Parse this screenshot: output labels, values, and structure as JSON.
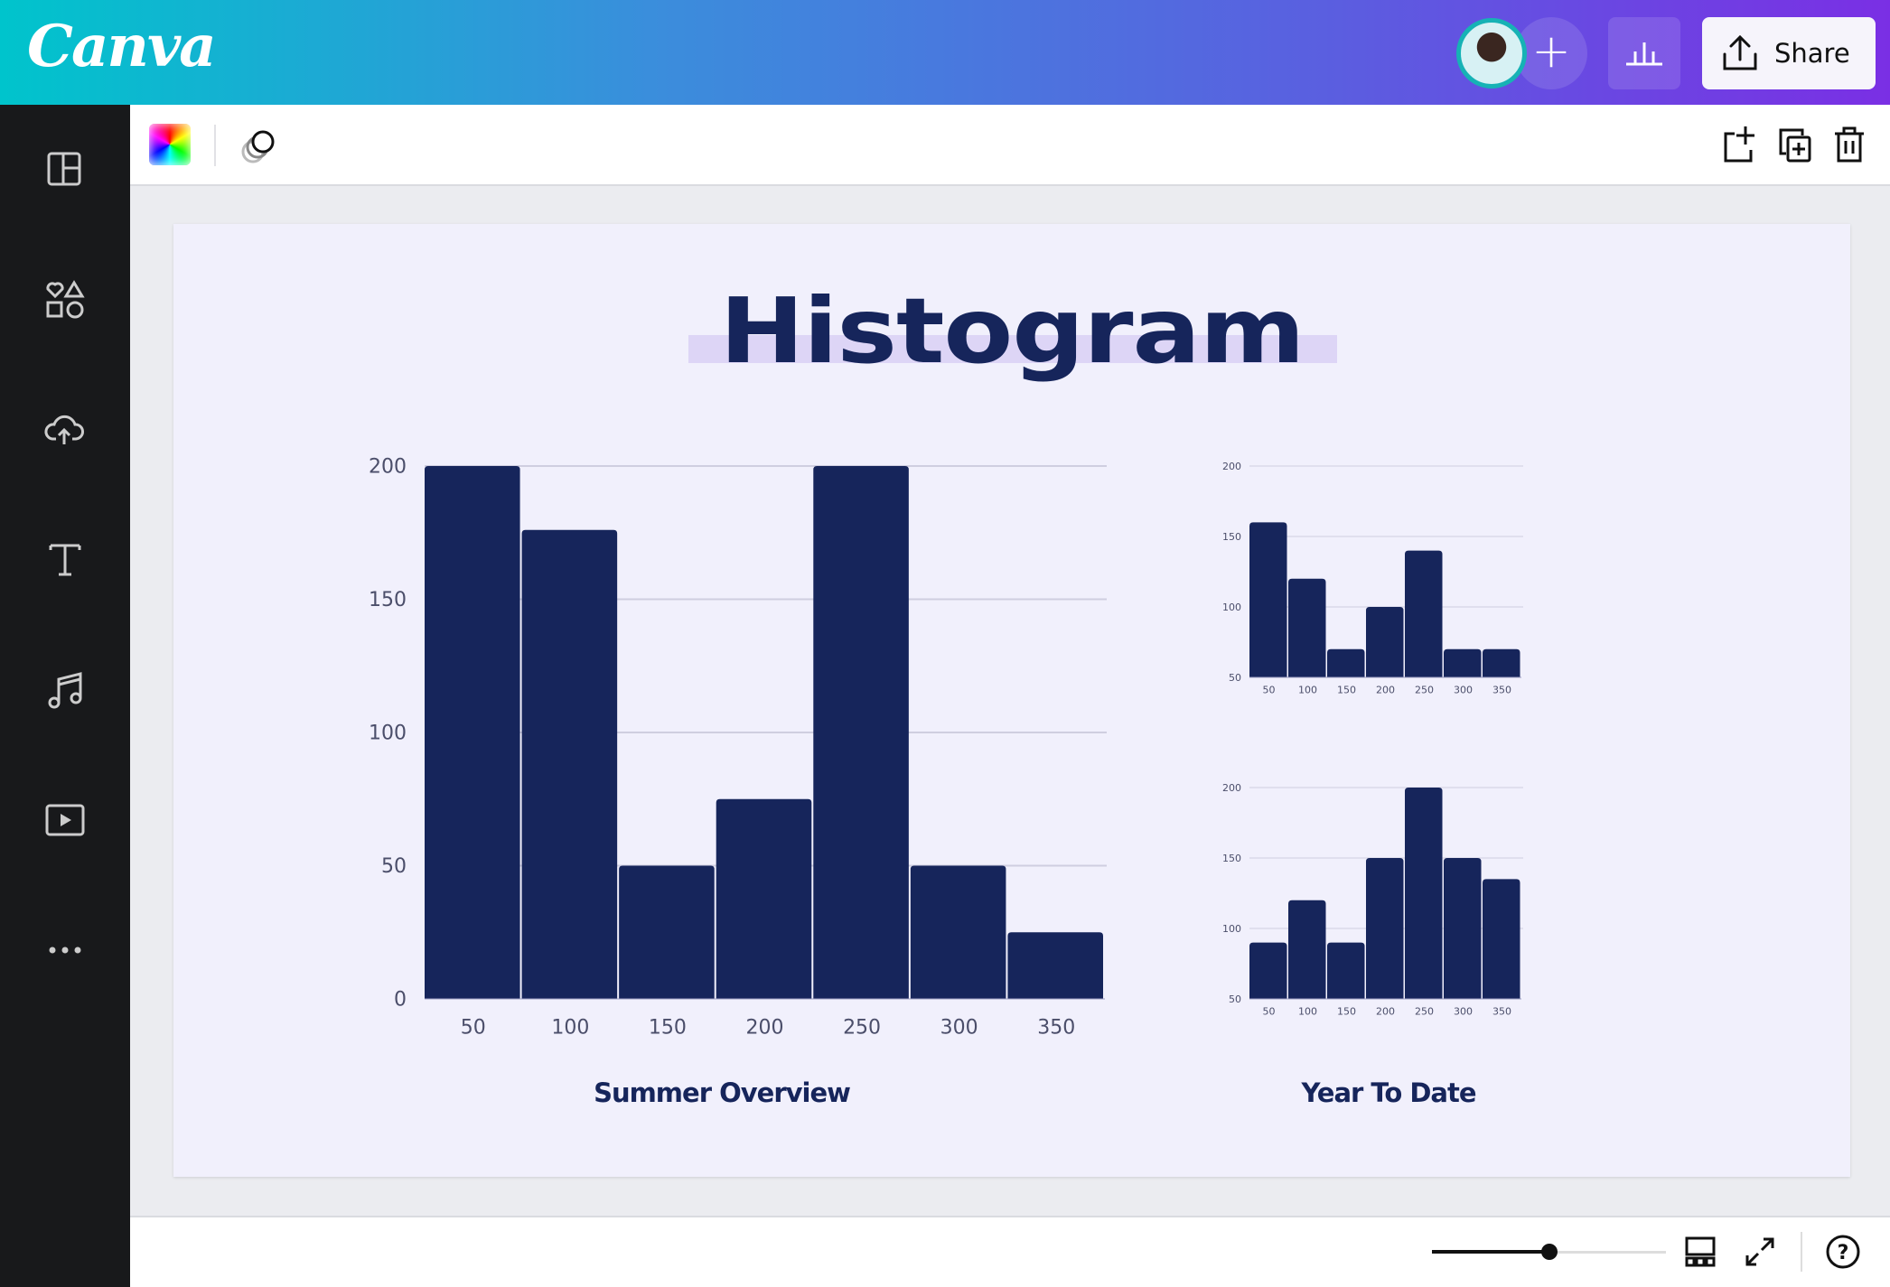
{
  "header": {
    "logo": "Canva",
    "share_label": "Share",
    "colors": {
      "gradient_start": "#00c4cc",
      "gradient_end": "#7a2fe4"
    }
  },
  "sidebar": {
    "items": [
      "layout-icon",
      "elements-icon",
      "upload-icon",
      "text-icon",
      "audio-icon",
      "video-icon",
      "more-icon"
    ]
  },
  "page": {
    "title": "Histogram",
    "captions": {
      "main": "Summer Overview",
      "side": "Year To Date"
    }
  },
  "colors": {
    "bar": "#16255b",
    "grid": "#cfcee0",
    "page_bg": "#f1f0fc"
  },
  "zoom_slider": {
    "level": 0.5
  },
  "chart_data": [
    {
      "type": "bar",
      "title": "Summer Overview",
      "categories": [
        "50",
        "100",
        "150",
        "200",
        "250",
        "300",
        "350"
      ],
      "values": [
        200,
        176,
        50,
        75,
        200,
        50,
        25
      ],
      "ylim": [
        0,
        200
      ],
      "yticks": [
        0,
        50,
        100,
        150,
        200
      ],
      "grid": true
    },
    {
      "type": "bar",
      "title": "Year To Date",
      "categories": [
        "50",
        "100",
        "150",
        "200",
        "250",
        "300",
        "350"
      ],
      "values": [
        160,
        120,
        70,
        100,
        140,
        70,
        70
      ],
      "ylim": [
        50,
        200
      ],
      "yticks": [
        50,
        100,
        150,
        200
      ],
      "grid": true
    },
    {
      "type": "bar",
      "title": "Year To Date",
      "categories": [
        "50",
        "100",
        "150",
        "200",
        "250",
        "300",
        "350"
      ],
      "values": [
        90,
        120,
        90,
        150,
        200,
        150,
        135
      ],
      "ylim": [
        50,
        200
      ],
      "yticks": [
        50,
        100,
        150,
        200
      ],
      "grid": true
    }
  ]
}
